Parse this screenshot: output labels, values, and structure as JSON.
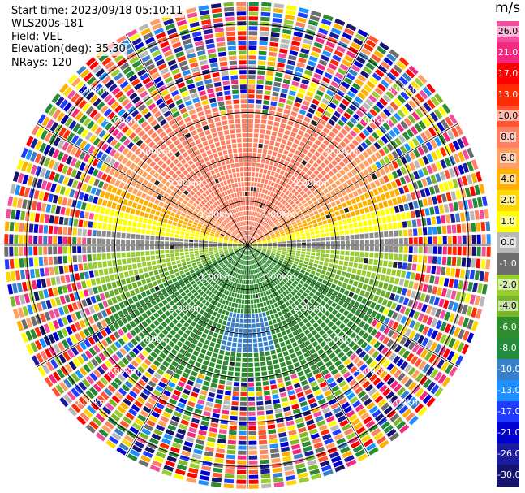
{
  "header": {
    "start_time": "Start time: 2023/09/18 05:10:11",
    "instrument": "WLS200s-181",
    "field": "Field: VEL",
    "elevation": "Elevation(deg): 35.30",
    "nrays": "NRays: 120"
  },
  "chart_data": {
    "type": "ppi-scan",
    "field": "VEL",
    "elevation_deg": 35.3,
    "n_rays": 120,
    "range_rings_km": [
      1.0,
      2.0,
      3.0,
      4.0,
      5.0
    ],
    "ring_labels": [
      "1.00km",
      "2.00km",
      "3.00km",
      "4.00km",
      "5.00km"
    ],
    "max_range_km": 5.5,
    "valid_range_km": 3.1,
    "colorbar": {
      "unit": "m/s",
      "ticks": [
        "26.0",
        "21.0",
        "17.0",
        "13.0",
        "10.0",
        "8.0",
        "6.0",
        "4.0",
        "2.0",
        "1.0",
        "0.0",
        "-1.0",
        "-2.0",
        "-4.0",
        "-6.0",
        "-8.0",
        "-10.0",
        "-13.0",
        "-17.0",
        "-21.0",
        "-26.0",
        "-30.0"
      ],
      "colors": [
        "#f14e9d",
        "#f5287f",
        "#ff0000",
        "#ff2a00",
        "#ff5533",
        "#ff8060",
        "#ffa060",
        "#ffb000",
        "#ffd700",
        "#ffff00",
        "#b8b8b8",
        "#6e6e6e",
        "#9acd32",
        "#7ab82a",
        "#2e8b2e",
        "#228b3c",
        "#3a80c8",
        "#1e90ff",
        "#1f3cff",
        "#0000d0",
        "#1b1b9e",
        "#14146e"
      ]
    },
    "velocity_pattern": "Positive velocities (yellow/orange) toward the north, negative velocities (green/blue) toward the south, zero band (gray) along the east-west line; noisy multicolor returns beyond about 3 km."
  }
}
